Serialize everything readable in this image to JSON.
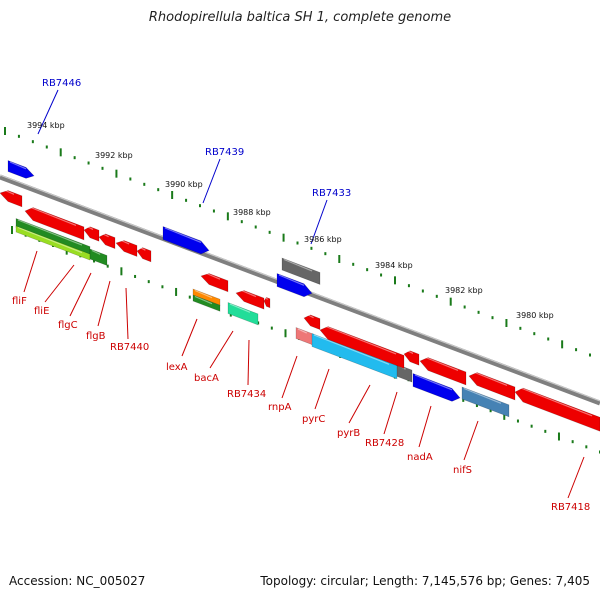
{
  "title": "Rhodopirellula baltica SH 1, complete genome",
  "footer": {
    "accession": "Accession: NC_005027",
    "summary": "Topology: circular; Length: 7,145,576 bp; Genes: 7,405"
  },
  "ticks": [
    {
      "label": "3994 kbp"
    },
    {
      "label": "3992 kbp"
    },
    {
      "label": "3990 kbp"
    },
    {
      "label": "3988 kbp"
    },
    {
      "label": "3986 kbp"
    },
    {
      "label": "3984 kbp"
    },
    {
      "label": "3982 kbp"
    },
    {
      "label": "3980 kbp"
    }
  ],
  "upper_labels": [
    {
      "label": "RB7446",
      "color": "#0000cc"
    },
    {
      "label": "RB7439",
      "color": "#0000cc"
    },
    {
      "label": "RB7433",
      "color": "#0000cc"
    }
  ],
  "lower_labels": [
    {
      "label": "fliF",
      "color": "#cc0000"
    },
    {
      "label": "fliE",
      "color": "#cc0000"
    },
    {
      "label": "flgC",
      "color": "#cc0000"
    },
    {
      "label": "flgB",
      "color": "#cc0000"
    },
    {
      "label": "RB7440",
      "color": "#cc0000"
    },
    {
      "label": "lexA",
      "color": "#cc0000"
    },
    {
      "label": "bacA",
      "color": "#cc0000"
    },
    {
      "label": "RB7434",
      "color": "#cc0000"
    },
    {
      "label": "rnpA",
      "color": "#cc0000"
    },
    {
      "label": "pyrC",
      "color": "#cc0000"
    },
    {
      "label": "pyrB",
      "color": "#cc0000"
    },
    {
      "label": "RB7428",
      "color": "#cc0000"
    },
    {
      "label": "nadA",
      "color": "#cc0000"
    },
    {
      "label": "nifS",
      "color": "#cc0000"
    },
    {
      "label": "RB7418",
      "color": "#cc0000"
    }
  ],
  "colors": {
    "backbone": "#808080",
    "tick": "#1a7a1a",
    "forward_gene": "#0000ee",
    "reverse_gene": "#ee0000",
    "gray_gene": "#666666",
    "green_gene": "#228b22",
    "lightgreen_gene": "#99dd22",
    "cyan_gene": "#22bbee",
    "steel_gene": "#4682b4",
    "aqua_gene": "#22dd99",
    "orange_gene": "#ff8800",
    "pink_gene": "#ee7777"
  }
}
